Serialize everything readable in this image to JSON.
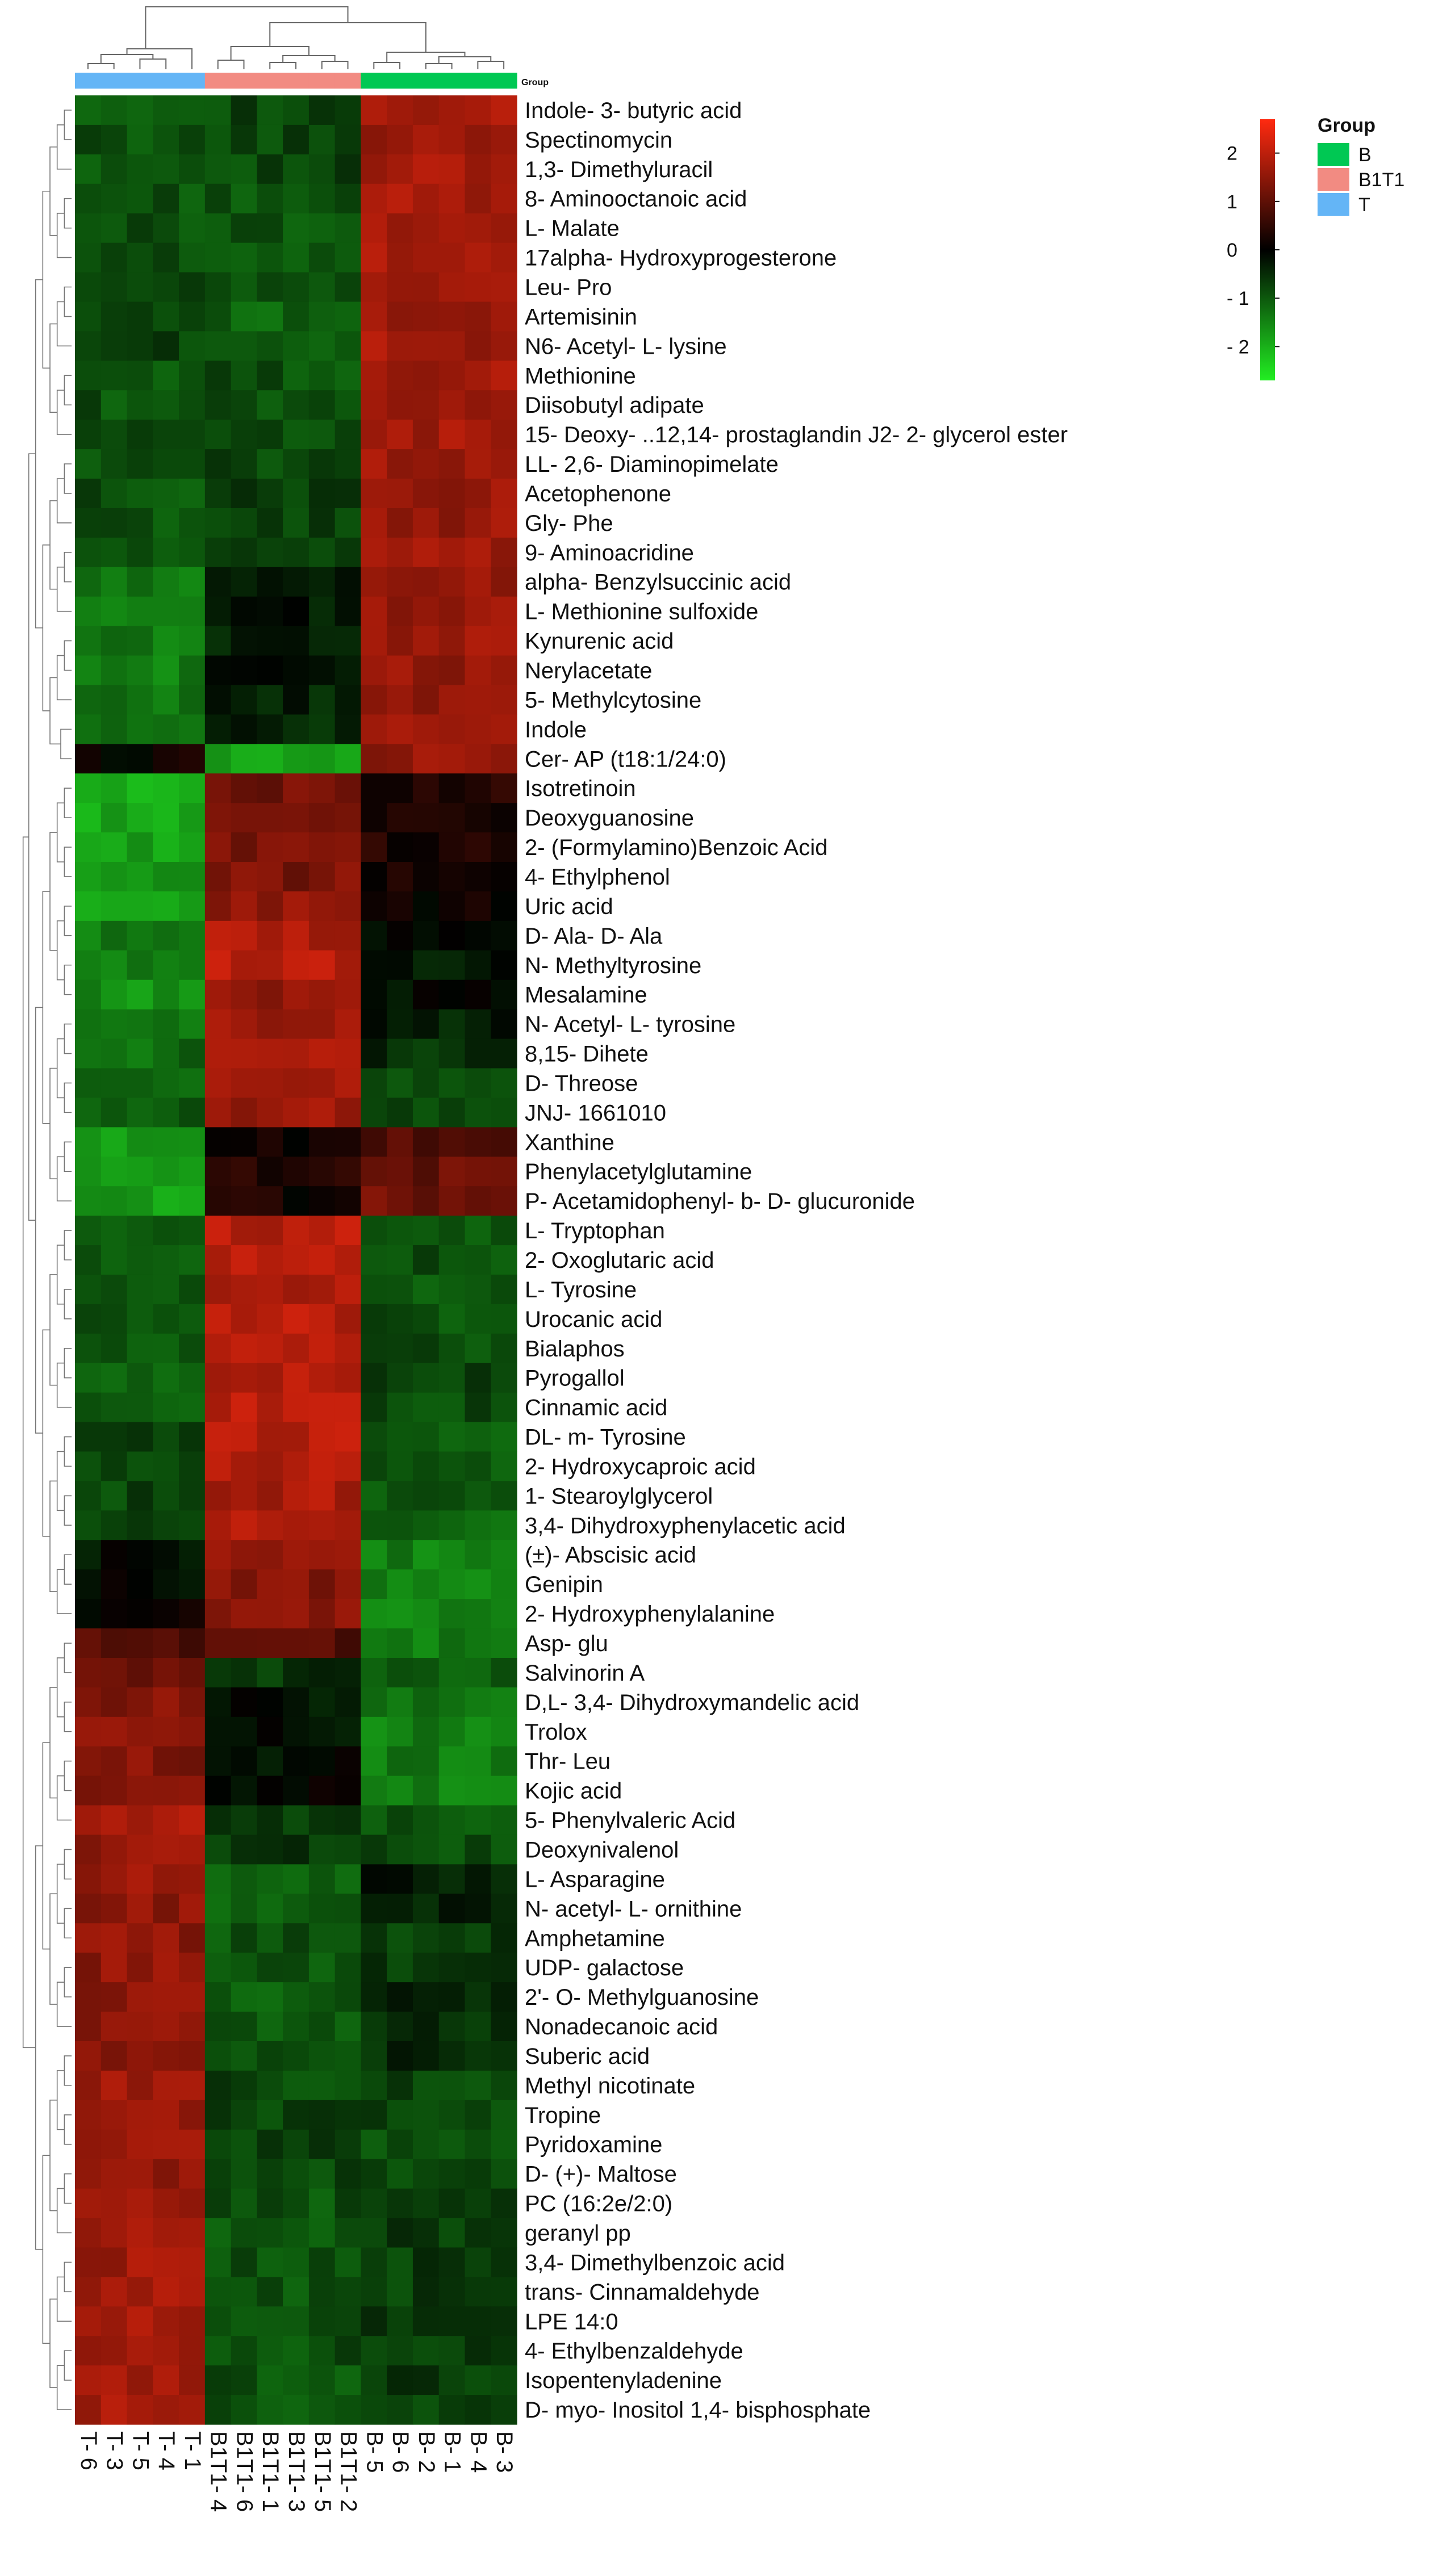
{
  "chart_data": {
    "type": "heatmap",
    "group_bar_title": "Group",
    "legend": {
      "color_key_ticks": [
        "2",
        "1",
        "0",
        "- 1",
        "- 2"
      ],
      "color_key_tick_values": [
        2,
        1,
        0,
        -1,
        -2
      ],
      "color_range": [
        -2.7,
        2.7
      ],
      "title": "Group",
      "groups": [
        {
          "name": "B",
          "color": "#00c853"
        },
        {
          "name": "B1T1",
          "color": "#f28b82"
        },
        {
          "name": "T",
          "color": "#64b5f6"
        }
      ]
    },
    "colors": {
      "low": "#22ee22",
      "mid": "#000000",
      "high": "#ff2a10"
    },
    "columns": [
      "T- 6",
      "T- 3",
      "T- 5",
      "T- 4",
      "T- 1",
      "B1T1- 4",
      "B1T1- 6",
      "B1T1- 1",
      "B1T1- 3",
      "B1T1- 5",
      "B1T1- 2",
      "B- 5",
      "B- 6",
      "B- 2",
      "B- 1",
      "B- 4",
      "B- 3"
    ],
    "column_groups": [
      "T",
      "T",
      "T",
      "T",
      "T",
      "B1T1",
      "B1T1",
      "B1T1",
      "B1T1",
      "B1T1",
      "B1T1",
      "B",
      "B",
      "B",
      "B",
      "B",
      "B"
    ],
    "rows": [
      "Indole- 3- butyric acid",
      "Spectinomycin",
      "1,3- Dimethyluracil",
      "8- Aminooctanoic acid",
      "L- Malate",
      "17alpha- Hydroxyprogesterone",
      "Leu- Pro",
      "Artemisinin",
      "N6- Acetyl- L- lysine",
      "Methionine",
      "Diisobutyl adipate",
      "15- Deoxy- ..12,14- prostaglandin J2- 2- glycerol ester",
      "LL- 2,6- Diaminopimelate",
      "Acetophenone",
      "Gly- Phe",
      "9- Aminoacridine",
      "alpha- Benzylsuccinic acid",
      "L- Methionine sulfoxide",
      "Kynurenic acid",
      "Nerylacetate",
      "5- Methylcytosine",
      "Indole",
      "Cer- AP (t18:1/24:0)",
      "Isotretinoin",
      "Deoxyguanosine",
      "2- (Formylamino)Benzoic Acid",
      "4- Ethylphenol",
      "Uric acid",
      "D- Ala- D- Ala",
      "N- Methyltyrosine",
      "Mesalamine",
      "N- Acetyl- L- tyrosine",
      "8,15- Dihete",
      "D- Threose",
      "JNJ- 1661010",
      "Xanthine",
      "Phenylacetylglutamine",
      "P- Acetamidophenyl- b- D- glucuronide",
      "L- Tryptophan",
      "2- Oxoglutaric acid",
      "L- Tyrosine",
      "Urocanic acid",
      "Bialaphos",
      "Pyrogallol",
      "Cinnamic acid",
      "DL- m- Tyrosine",
      "2- Hydroxycaproic acid",
      "1- Stearoylglycerol",
      "3,4- Dihydroxyphenylacetic acid",
      "(±)- Abscisic acid",
      "Genipin",
      "2- Hydroxyphenylalanine",
      "Asp- glu",
      "Salvinorin A",
      "D,L- 3,4- Dihydroxymandelic acid",
      "Trolox",
      "Thr- Leu",
      "Kojic acid",
      "5- Phenylvaleric Acid",
      "Deoxynivalenol",
      "L- Asparagine",
      "N- acetyl- L- ornithine",
      "Amphetamine",
      "UDP- galactose",
      "2'- O- Methylguanosine",
      "Nonadecanoic acid",
      "Suberic acid",
      "Methyl nicotinate",
      "Tropine",
      "Pyridoxamine",
      "D- (+)- Maltose",
      "PC (16:2e/2:0)",
      "geranyl pp",
      "3,4- Dimethylbenzoic acid",
      "trans- Cinnamaldehyde",
      "LPE 14:0",
      "4- Ethylbenzaldehyde",
      "Isopentenyladenine",
      "D- myo- Inositol 1,4- bisphosphate"
    ],
    "group_means": [
      [
        -0.9,
        -0.8,
        1.7
      ],
      [
        -0.9,
        -0.8,
        1.7
      ],
      [
        -0.9,
        -0.8,
        1.7
      ],
      [
        -0.9,
        -0.9,
        1.7
      ],
      [
        -0.9,
        -0.9,
        1.7
      ],
      [
        -0.9,
        -0.9,
        1.7
      ],
      [
        -0.9,
        -0.9,
        1.7
      ],
      [
        -0.7,
        -1.1,
        1.7
      ],
      [
        -0.7,
        -1.1,
        1.7
      ],
      [
        -0.9,
        -0.9,
        1.7
      ],
      [
        -0.9,
        -0.9,
        1.7
      ],
      [
        -0.9,
        -0.9,
        1.7
      ],
      [
        -0.9,
        -0.8,
        1.7
      ],
      [
        -0.9,
        -0.7,
        1.6
      ],
      [
        -0.9,
        -0.8,
        1.6
      ],
      [
        -0.9,
        -0.8,
        1.6
      ],
      [
        -1.4,
        -0.3,
        1.6
      ],
      [
        -1.4,
        -0.3,
        1.6
      ],
      [
        -1.4,
        -0.3,
        1.6
      ],
      [
        -1.4,
        -0.3,
        1.6
      ],
      [
        -1.3,
        -0.4,
        1.6
      ],
      [
        -1.3,
        -0.4,
        1.6
      ],
      [
        0.1,
        -1.8,
        1.6
      ],
      [
        -1.9,
        1.2,
        0.4
      ],
      [
        -1.9,
        1.2,
        0.3
      ],
      [
        -1.8,
        1.3,
        0.3
      ],
      [
        -1.8,
        1.3,
        0.2
      ],
      [
        -1.7,
        1.5,
        0.1
      ],
      [
        -1.4,
        1.8,
        -0.1
      ],
      [
        -1.4,
        1.9,
        -0.2
      ],
      [
        -1.6,
        1.6,
        -0.1
      ],
      [
        -1.4,
        1.6,
        -0.3
      ],
      [
        -1.2,
        1.8,
        -0.5
      ],
      [
        -1.0,
        1.7,
        -0.9
      ],
      [
        -1.0,
        1.6,
        -0.9
      ],
      [
        -1.7,
        0.2,
        0.8
      ],
      [
        -1.9,
        0.3,
        1.1
      ],
      [
        -1.8,
        0.2,
        1.2
      ],
      [
        -1.0,
        1.9,
        -0.9
      ],
      [
        -1.0,
        1.9,
        -0.9
      ],
      [
        -1.0,
        1.9,
        -0.9
      ],
      [
        -1.0,
        1.9,
        -0.9
      ],
      [
        -0.9,
        1.9,
        -0.9
      ],
      [
        -1.0,
        1.9,
        -0.8
      ],
      [
        -1.0,
        1.9,
        -0.8
      ],
      [
        -0.8,
        1.9,
        -1.0
      ],
      [
        -0.8,
        1.9,
        -1.0
      ],
      [
        -0.8,
        1.8,
        -1.0
      ],
      [
        -0.7,
        1.8,
        -1.1
      ],
      [
        -0.2,
        1.5,
        -1.4
      ],
      [
        -0.1,
        1.4,
        -1.4
      ],
      [
        0.1,
        1.4,
        -1.5
      ],
      [
        0.9,
        0.9,
        -1.4
      ],
      [
        1.2,
        -0.6,
        -1.0
      ],
      [
        1.4,
        -0.2,
        -1.3
      ],
      [
        1.4,
        -0.2,
        -1.4
      ],
      [
        1.4,
        -0.1,
        -1.4
      ],
      [
        1.4,
        -0.1,
        -1.4
      ],
      [
        1.8,
        -0.6,
        -0.9
      ],
      [
        1.5,
        -0.6,
        -0.9
      ],
      [
        1.6,
        -1.1,
        -0.3
      ],
      [
        1.5,
        -1.1,
        -0.4
      ],
      [
        1.5,
        -0.9,
        -0.7
      ],
      [
        1.5,
        -0.9,
        -0.7
      ],
      [
        1.5,
        -1.0,
        -0.5
      ],
      [
        1.5,
        -1.0,
        -0.5
      ],
      [
        1.5,
        -1.0,
        -0.5
      ],
      [
        1.6,
        -0.8,
        -0.8
      ],
      [
        1.6,
        -0.8,
        -0.8
      ],
      [
        1.6,
        -0.8,
        -0.8
      ],
      [
        1.6,
        -0.8,
        -0.8
      ],
      [
        1.7,
        -0.9,
        -0.7
      ],
      [
        1.7,
        -0.9,
        -0.7
      ],
      [
        1.7,
        -0.9,
        -0.7
      ],
      [
        1.7,
        -0.9,
        -0.7
      ],
      [
        1.7,
        -0.9,
        -0.7
      ],
      [
        1.7,
        -0.9,
        -0.7
      ],
      [
        1.7,
        -0.9,
        -0.7
      ],
      [
        1.7,
        -0.9,
        -0.7
      ]
    ],
    "row_clusters": [
      "B-high",
      "B1T1-high",
      "T-high"
    ]
  }
}
